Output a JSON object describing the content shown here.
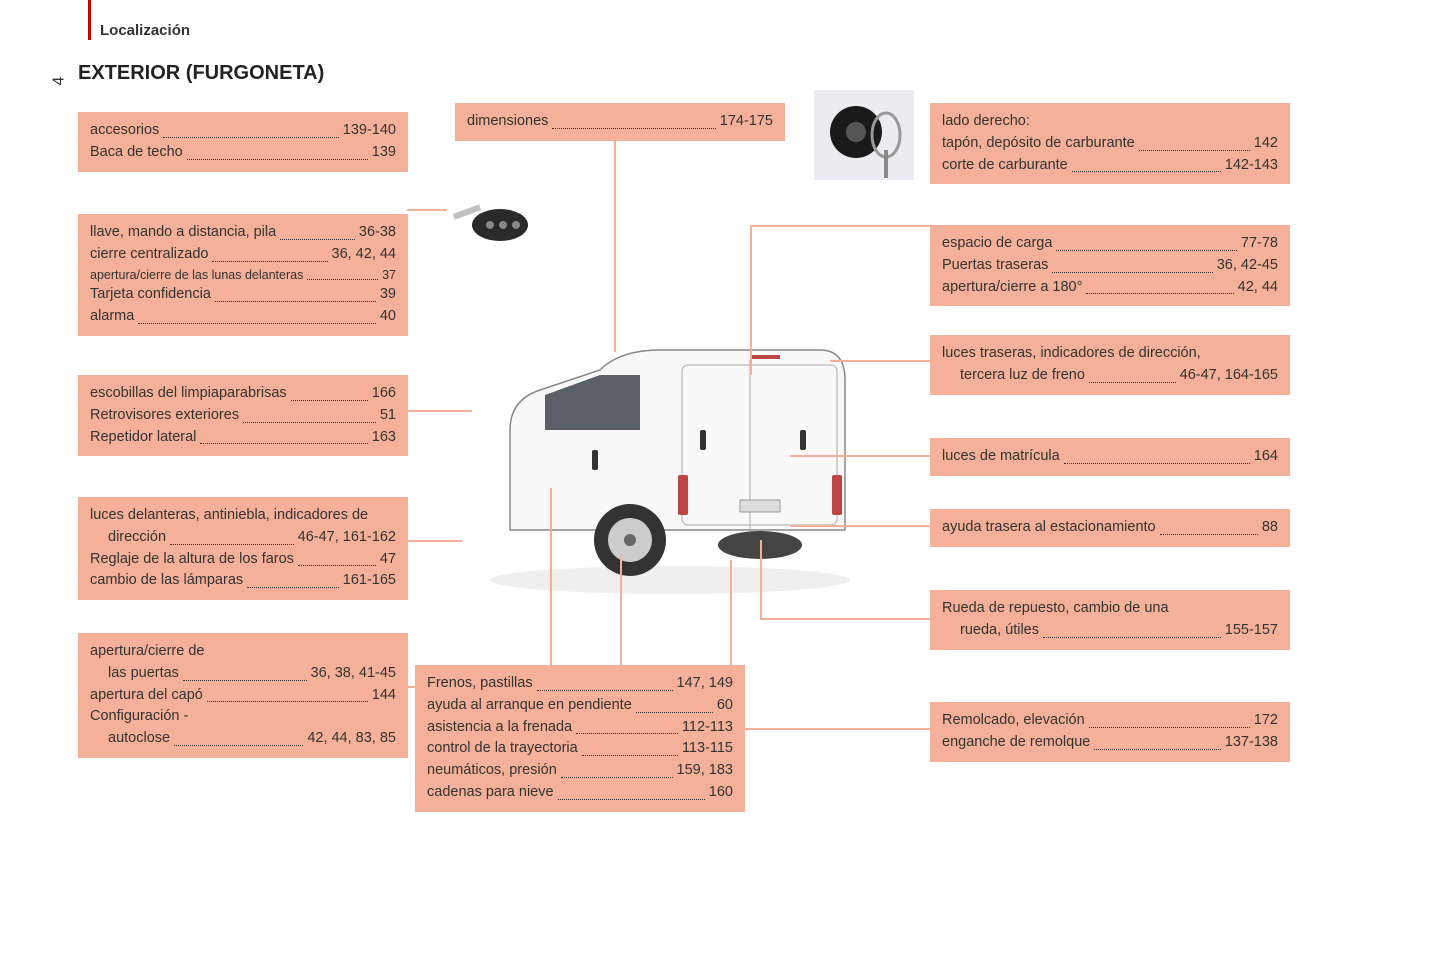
{
  "header": {
    "breadcrumb": "Localización",
    "page_number": "4",
    "title": "EXTERIOR (FURGONETA)"
  },
  "colors": {
    "box_bg": "#f4b098",
    "accent_red": "#d10000",
    "text": "#333333",
    "background": "#ffffff"
  },
  "boxes": {
    "accesorios": {
      "entries": [
        {
          "label": "accesorios",
          "pages": "139-140"
        },
        {
          "label": "Baca de techo",
          "pages": "139"
        }
      ]
    },
    "dimensiones": {
      "entries": [
        {
          "label": "dimensiones",
          "pages": "174-175"
        }
      ]
    },
    "lado_derecho": {
      "header": "lado derecho:",
      "entries": [
        {
          "label": "tapón, depósito de carburante",
          "pages": "142"
        },
        {
          "label": "corte de carburante",
          "pages": "142-143"
        }
      ]
    },
    "llave": {
      "entries": [
        {
          "label": "llave, mando a distancia, pila",
          "pages": "36-38"
        },
        {
          "label": "cierre centralizado",
          "pages": "36, 42, 44"
        },
        {
          "label": "apertura/cierre de las lunas delanteras",
          "pages": "37",
          "small": true
        },
        {
          "label": "Tarjeta confidencia",
          "pages": "39"
        },
        {
          "label": "alarma",
          "pages": "40"
        }
      ]
    },
    "espacio_carga": {
      "entries": [
        {
          "label": "espacio de carga",
          "pages": "77-78"
        },
        {
          "label": "Puertas traseras",
          "pages": "36, 42-45"
        },
        {
          "label": "apertura/cierre a 180°",
          "pages": "42, 44"
        }
      ]
    },
    "luces_traseras": {
      "entries_two": [
        {
          "line1": "luces traseras, indicadores de dirección,",
          "line2_label": "tercera luz de freno",
          "pages": "46-47, 164-165"
        }
      ]
    },
    "escobillas": {
      "entries": [
        {
          "label": "escobillas del limpiaparabrisas",
          "pages": "166"
        },
        {
          "label": "Retrovisores exteriores",
          "pages": "51"
        },
        {
          "label": "Repetidor lateral",
          "pages": "163"
        }
      ]
    },
    "luces_matricula": {
      "entries": [
        {
          "label": "luces de matrícula",
          "pages": "164"
        }
      ]
    },
    "luces_delanteras": {
      "entries_mixed": [
        {
          "type": "two",
          "line1": "luces delanteras, antiniebla, indicadores de",
          "line2_label": "dirección",
          "pages": "46-47, 161-162"
        },
        {
          "type": "one",
          "label": "Reglaje de la altura de los faros",
          "pages": "47"
        },
        {
          "type": "one",
          "label": "cambio de las lámparas",
          "pages": "161-165"
        }
      ]
    },
    "ayuda_trasera": {
      "entries": [
        {
          "label": "ayuda trasera al estacionamiento",
          "pages": "88"
        }
      ]
    },
    "rueda_repuesto": {
      "entries_two": [
        {
          "line1": "Rueda de repuesto, cambio de una",
          "line2_label": "rueda, útiles",
          "pages": "155-157"
        }
      ]
    },
    "apertura_puertas": {
      "entries_mixed": [
        {
          "type": "two",
          "line1": "apertura/cierre de",
          "line2_label": "las puertas",
          "pages": "36, 38, 41-45"
        },
        {
          "type": "one",
          "label": "apertura del capó",
          "pages": "144"
        },
        {
          "type": "two",
          "line1": "Configuración -",
          "line2_label": "autoclose",
          "pages": "42, 44, 83, 85"
        }
      ]
    },
    "frenos": {
      "entries": [
        {
          "label": "Frenos, pastillas",
          "pages": "147, 149"
        },
        {
          "label": "ayuda al arranque en pendiente",
          "pages": "60"
        },
        {
          "label": "asistencia a la frenada",
          "pages": "112-113"
        },
        {
          "label": "control de la trayectoria",
          "pages": "113-115"
        },
        {
          "label": "neumáticos, presión",
          "pages": "159, 183"
        },
        {
          "label": "cadenas para nieve",
          "pages": "160"
        }
      ]
    },
    "remolcado": {
      "entries": [
        {
          "label": "Remolcado, elevación",
          "pages": "172"
        },
        {
          "label": "enganche de remolque",
          "pages": "137-138"
        }
      ]
    }
  }
}
